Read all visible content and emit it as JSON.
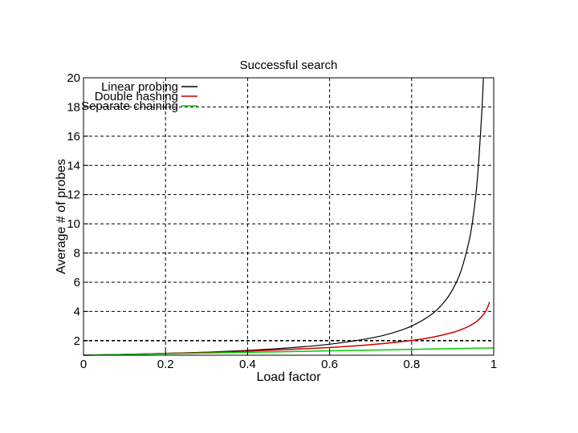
{
  "chart_data": {
    "type": "line",
    "title": "Successful search",
    "xlabel": "Load factor",
    "ylabel": "Average # of probes",
    "xlim": [
      0,
      1
    ],
    "ylim": [
      1,
      20
    ],
    "xticks": [
      0,
      0.2,
      0.4,
      0.6,
      0.8,
      1
    ],
    "xtick_labels": [
      "0",
      "0.2",
      "0.4",
      "0.6",
      "0.8",
      "1"
    ],
    "yticks": [
      2,
      4,
      6,
      8,
      10,
      12,
      14,
      16,
      18,
      20
    ],
    "ytick_labels": [
      "2",
      "4",
      "6",
      "8",
      "10",
      "12",
      "14",
      "16",
      "18",
      "20"
    ],
    "grid": true,
    "reference_line_y": 2,
    "legend_position": "top-left",
    "series": [
      {
        "name": "Linear probing",
        "color": "#000000",
        "x": [
          0,
          0.1,
          0.2,
          0.3,
          0.4,
          0.5,
          0.6,
          0.7,
          0.75,
          0.8,
          0.85,
          0.88,
          0.9,
          0.92,
          0.94,
          0.95,
          0.96,
          0.97,
          0.975
        ],
        "y": [
          1.0,
          1.06,
          1.13,
          1.21,
          1.33,
          1.5,
          1.75,
          2.17,
          2.5,
          3.0,
          3.83,
          4.67,
          5.5,
          6.75,
          8.83,
          10.5,
          13.0,
          17.17,
          20.0
        ]
      },
      {
        "name": "Double hashing",
        "color": "#cc0000",
        "x": [
          0,
          0.1,
          0.2,
          0.3,
          0.4,
          0.5,
          0.6,
          0.7,
          0.8,
          0.85,
          0.9,
          0.92,
          0.94,
          0.96,
          0.98,
          0.99
        ],
        "y": [
          1.0,
          1.05,
          1.12,
          1.19,
          1.28,
          1.39,
          1.53,
          1.72,
          2.01,
          2.23,
          2.56,
          2.75,
          2.99,
          3.35,
          3.99,
          4.65
        ]
      },
      {
        "name": "Separate chaining",
        "color": "#00cc00",
        "x": [
          0,
          0.2,
          0.4,
          0.6,
          0.8,
          1.0
        ],
        "y": [
          1.0,
          1.1,
          1.2,
          1.3,
          1.4,
          1.5
        ]
      }
    ]
  }
}
